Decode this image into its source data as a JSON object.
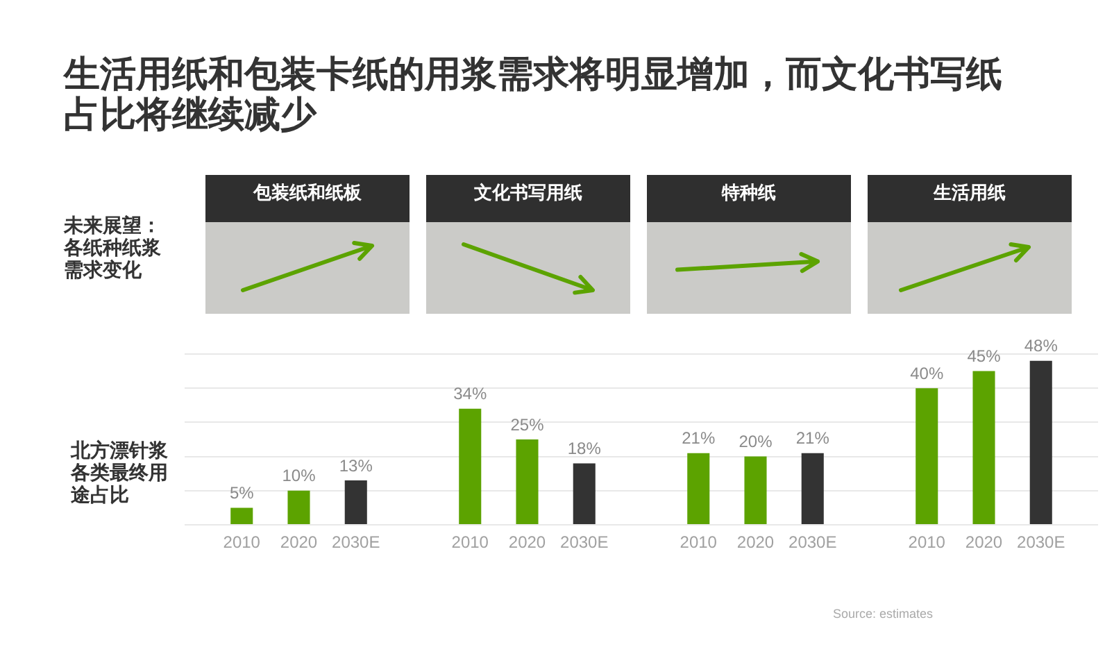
{
  "chart_data": {
    "type": "bar",
    "title": "生活用纸和包装卡纸的用浆需求将明显增加，而文化书写纸占比将继续减少",
    "categories": [
      "包装纸和纸板",
      "文化书写用纸",
      "特种纸",
      "生活用纸"
    ],
    "series": [
      {
        "name": "2010",
        "color": "#5ca300",
        "values": [
          5,
          34,
          21,
          40
        ],
        "value_labels": [
          "5%",
          "34%",
          "21%",
          "40%"
        ]
      },
      {
        "name": "2020",
        "color": "#5ca300",
        "values": [
          10,
          25,
          20,
          45
        ],
        "value_labels": [
          "10%",
          "25%",
          "20%",
          "45%"
        ]
      },
      {
        "name": "2030E",
        "color": "#333333",
        "values": [
          13,
          18,
          21,
          48
        ],
        "value_labels": [
          "13%",
          "18%",
          "21%",
          "48%"
        ]
      }
    ],
    "ylim": [
      0,
      50
    ],
    "yticks": [
      {
        "value": 0,
        "label": null
      },
      {
        "value": 10,
        "label": null
      },
      {
        "value": 20,
        "label": null
      },
      {
        "value": 30,
        "label": null
      },
      {
        "value": 40,
        "label": null
      },
      {
        "value": 50,
        "label": null
      }
    ],
    "grid": "y",
    "tick_labels": "x",
    "annotations": [
      "未来展望：各纸种纸浆需求变化",
      "北方漂针浆各类最终用途占比",
      "Source: estimates"
    ]
  }
}
